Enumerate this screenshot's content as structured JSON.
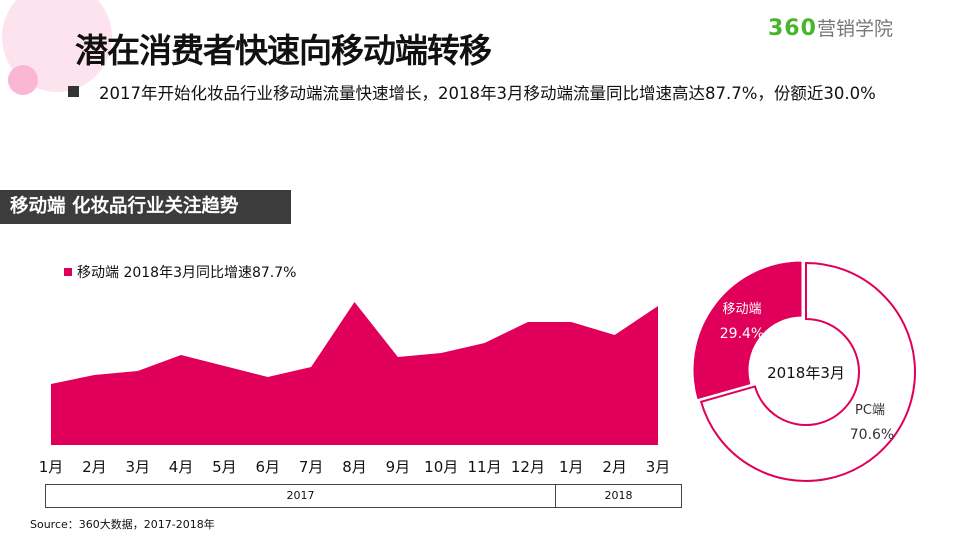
{
  "header": {
    "title": "潜在消费者快速向移动端转移",
    "logo_number": "360",
    "logo_text": "营销学院"
  },
  "summary": "2017年开始化妆品行业移动端流量快速增长，2018年3月移动端流量同比增速高达87.7%，份额近30.0%",
  "section_title": "移动端 化妆品行业关注趋势",
  "colors": {
    "accent": "#e0005a",
    "section_bg": "#3c3c3c",
    "logo_green": "#48b52b"
  },
  "chart_data": [
    {
      "type": "area",
      "legend": "移动端 2018年3月同比增速87.7%",
      "legend_position": "top-left",
      "grid": false,
      "categories": [
        "1月",
        "2月",
        "3月",
        "4月",
        "5月",
        "6月",
        "7月",
        "8月",
        "9月",
        "10月",
        "11月",
        "12月",
        "1月",
        "2月",
        "3月"
      ],
      "years": [
        {
          "label": "2017",
          "span": 12
        },
        {
          "label": "2018",
          "span": 3
        }
      ],
      "values": [
        61,
        70,
        74,
        90,
        79,
        68,
        78,
        143,
        88,
        92,
        102,
        123,
        123,
        110,
        139
      ],
      "ylim": [
        0,
        150
      ]
    },
    {
      "type": "pie",
      "center_label": "2018年3月",
      "slices": [
        {
          "name": "移动端",
          "value": 29.4,
          "label": "29.4%"
        },
        {
          "name": "PC端",
          "value": 70.6,
          "label": "70.6%"
        }
      ]
    }
  ],
  "source": "Source：360大数据，2017-2018年"
}
